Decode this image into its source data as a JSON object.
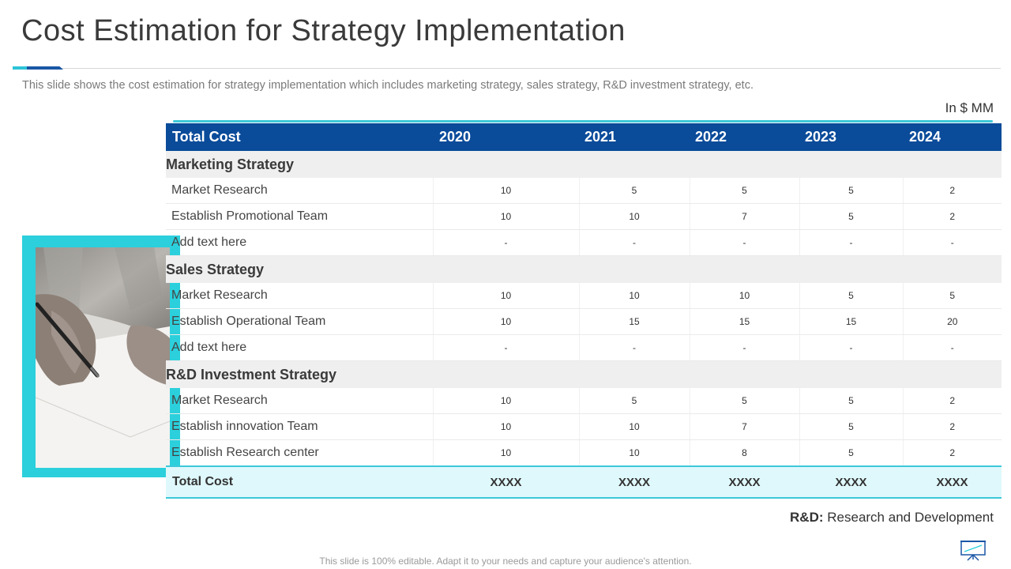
{
  "title": "Cost Estimation for Strategy Implementation",
  "subtitle": "This slide shows the cost estimation for strategy implementation which includes marketing strategy, sales strategy, R&D investment strategy, etc.",
  "units": "In $ MM",
  "table": {
    "header": [
      "Total Cost",
      "2020",
      "2021",
      "2022",
      "2023",
      "2024"
    ],
    "sections": [
      {
        "name": "Marketing Strategy",
        "rows": [
          {
            "label": "Market Research",
            "values": [
              "10",
              "5",
              "5",
              "5",
              "2"
            ]
          },
          {
            "label": "Establish Promotional Team",
            "values": [
              "10",
              "10",
              "7",
              "5",
              "2"
            ]
          },
          {
            "label": "Add text here",
            "values": [
              "-",
              "-",
              "-",
              "-",
              "-"
            ]
          }
        ]
      },
      {
        "name": "Sales Strategy",
        "rows": [
          {
            "label": "Market Research",
            "values": [
              "10",
              "10",
              "10",
              "5",
              "5"
            ]
          },
          {
            "label": "Establish Operational Team",
            "values": [
              "10",
              "15",
              "15",
              "15",
              "20"
            ]
          },
          {
            "label": "Add text here",
            "values": [
              "-",
              "-",
              "-",
              "-",
              "-"
            ]
          }
        ]
      },
      {
        "name": "R&D Investment Strategy",
        "rows": [
          {
            "label": "Market Research",
            "values": [
              "10",
              "5",
              "5",
              "5",
              "2"
            ]
          },
          {
            "label": "Establish innovation Team",
            "values": [
              "10",
              "10",
              "7",
              "5",
              "2"
            ]
          },
          {
            "label": "Establish Research center",
            "values": [
              "10",
              "10",
              "8",
              "5",
              "2"
            ]
          }
        ]
      }
    ],
    "total": {
      "label": "Total Cost",
      "values": [
        "XXXX",
        "XXXX",
        "XXXX",
        "XXXX",
        "XXXX"
      ]
    }
  },
  "footnote": {
    "abbr": "R&D:",
    "text": " Research and Development"
  },
  "bottom_note": "This slide is 100% editable. Adapt it to your needs and capture your audience's attention.",
  "icons": {
    "board": "presentation-board-icon"
  },
  "colors": {
    "header_bg": "#0a4b9a",
    "accent": "#2bd0dc",
    "section_bg": "#efefef",
    "total_bg": "#dff8fb"
  }
}
